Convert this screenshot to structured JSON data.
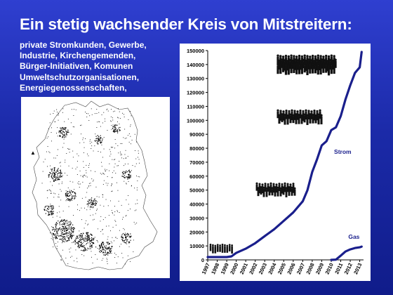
{
  "title": "Ein stetig wachsender Kreis von Mitstreitern:",
  "subtitle_lines": [
    "private Stromkunden, Gewerbe,",
    "Industrie,  Kirchengemenden,",
    "Bürger-Initiativen, Komunen",
    "Umweltschutzorganisationen,",
    "Energiegenossenschaften,"
  ],
  "map": {
    "north_marker": "▲",
    "dot_color": "#000000"
  },
  "chart_data": {
    "type": "line",
    "title": "",
    "xlabel": "",
    "ylabel": "",
    "ylim": [
      0,
      150000
    ],
    "yticks": [
      "0",
      "10000",
      "20000",
      "30000",
      "40000",
      "50000",
      "60000",
      "70000",
      "80000",
      "90000",
      "100000",
      "110000",
      "120000",
      "130000",
      "140000",
      "150000"
    ],
    "xticks": [
      "1997",
      "1998",
      "1999",
      "2000",
      "2001",
      "2002",
      "2003",
      "2004",
      "2005",
      "2006",
      "2007",
      "2008",
      "2009",
      "2010",
      "2011",
      "2012",
      "2013"
    ],
    "grid": false,
    "line_color": "#1a1f8c",
    "series": [
      {
        "name": "Strom",
        "x": [
          1997,
          1998,
          1999,
          1999.5,
          2000,
          2001,
          2002,
          2003,
          2004,
          2005,
          2006,
          2007,
          2007.5,
          2008,
          2008.5,
          2009,
          2009.5,
          2010,
          2010.5,
          2011,
          2011.5,
          2012,
          2012.5,
          2013,
          2013.2
        ],
        "values": [
          2000,
          2000,
          2000,
          2500,
          5000,
          8000,
          12000,
          17000,
          22000,
          28000,
          34000,
          42000,
          50000,
          63000,
          72000,
          82000,
          85000,
          93000,
          95000,
          103000,
          115000,
          125000,
          134000,
          138000,
          149000
        ]
      },
      {
        "name": "Gas",
        "x": [
          2010,
          2010.5,
          2011,
          2011.5,
          2012,
          2012.5,
          2013,
          2013.2
        ],
        "values": [
          0,
          200,
          3000,
          6000,
          7500,
          8500,
          9000,
          9500
        ]
      }
    ],
    "annotations": [
      {
        "text": "Strom",
        "x": 2010.3,
        "y": 76000
      },
      {
        "text": "Gas",
        "x": 2011.8,
        "y": 15000
      }
    ]
  }
}
